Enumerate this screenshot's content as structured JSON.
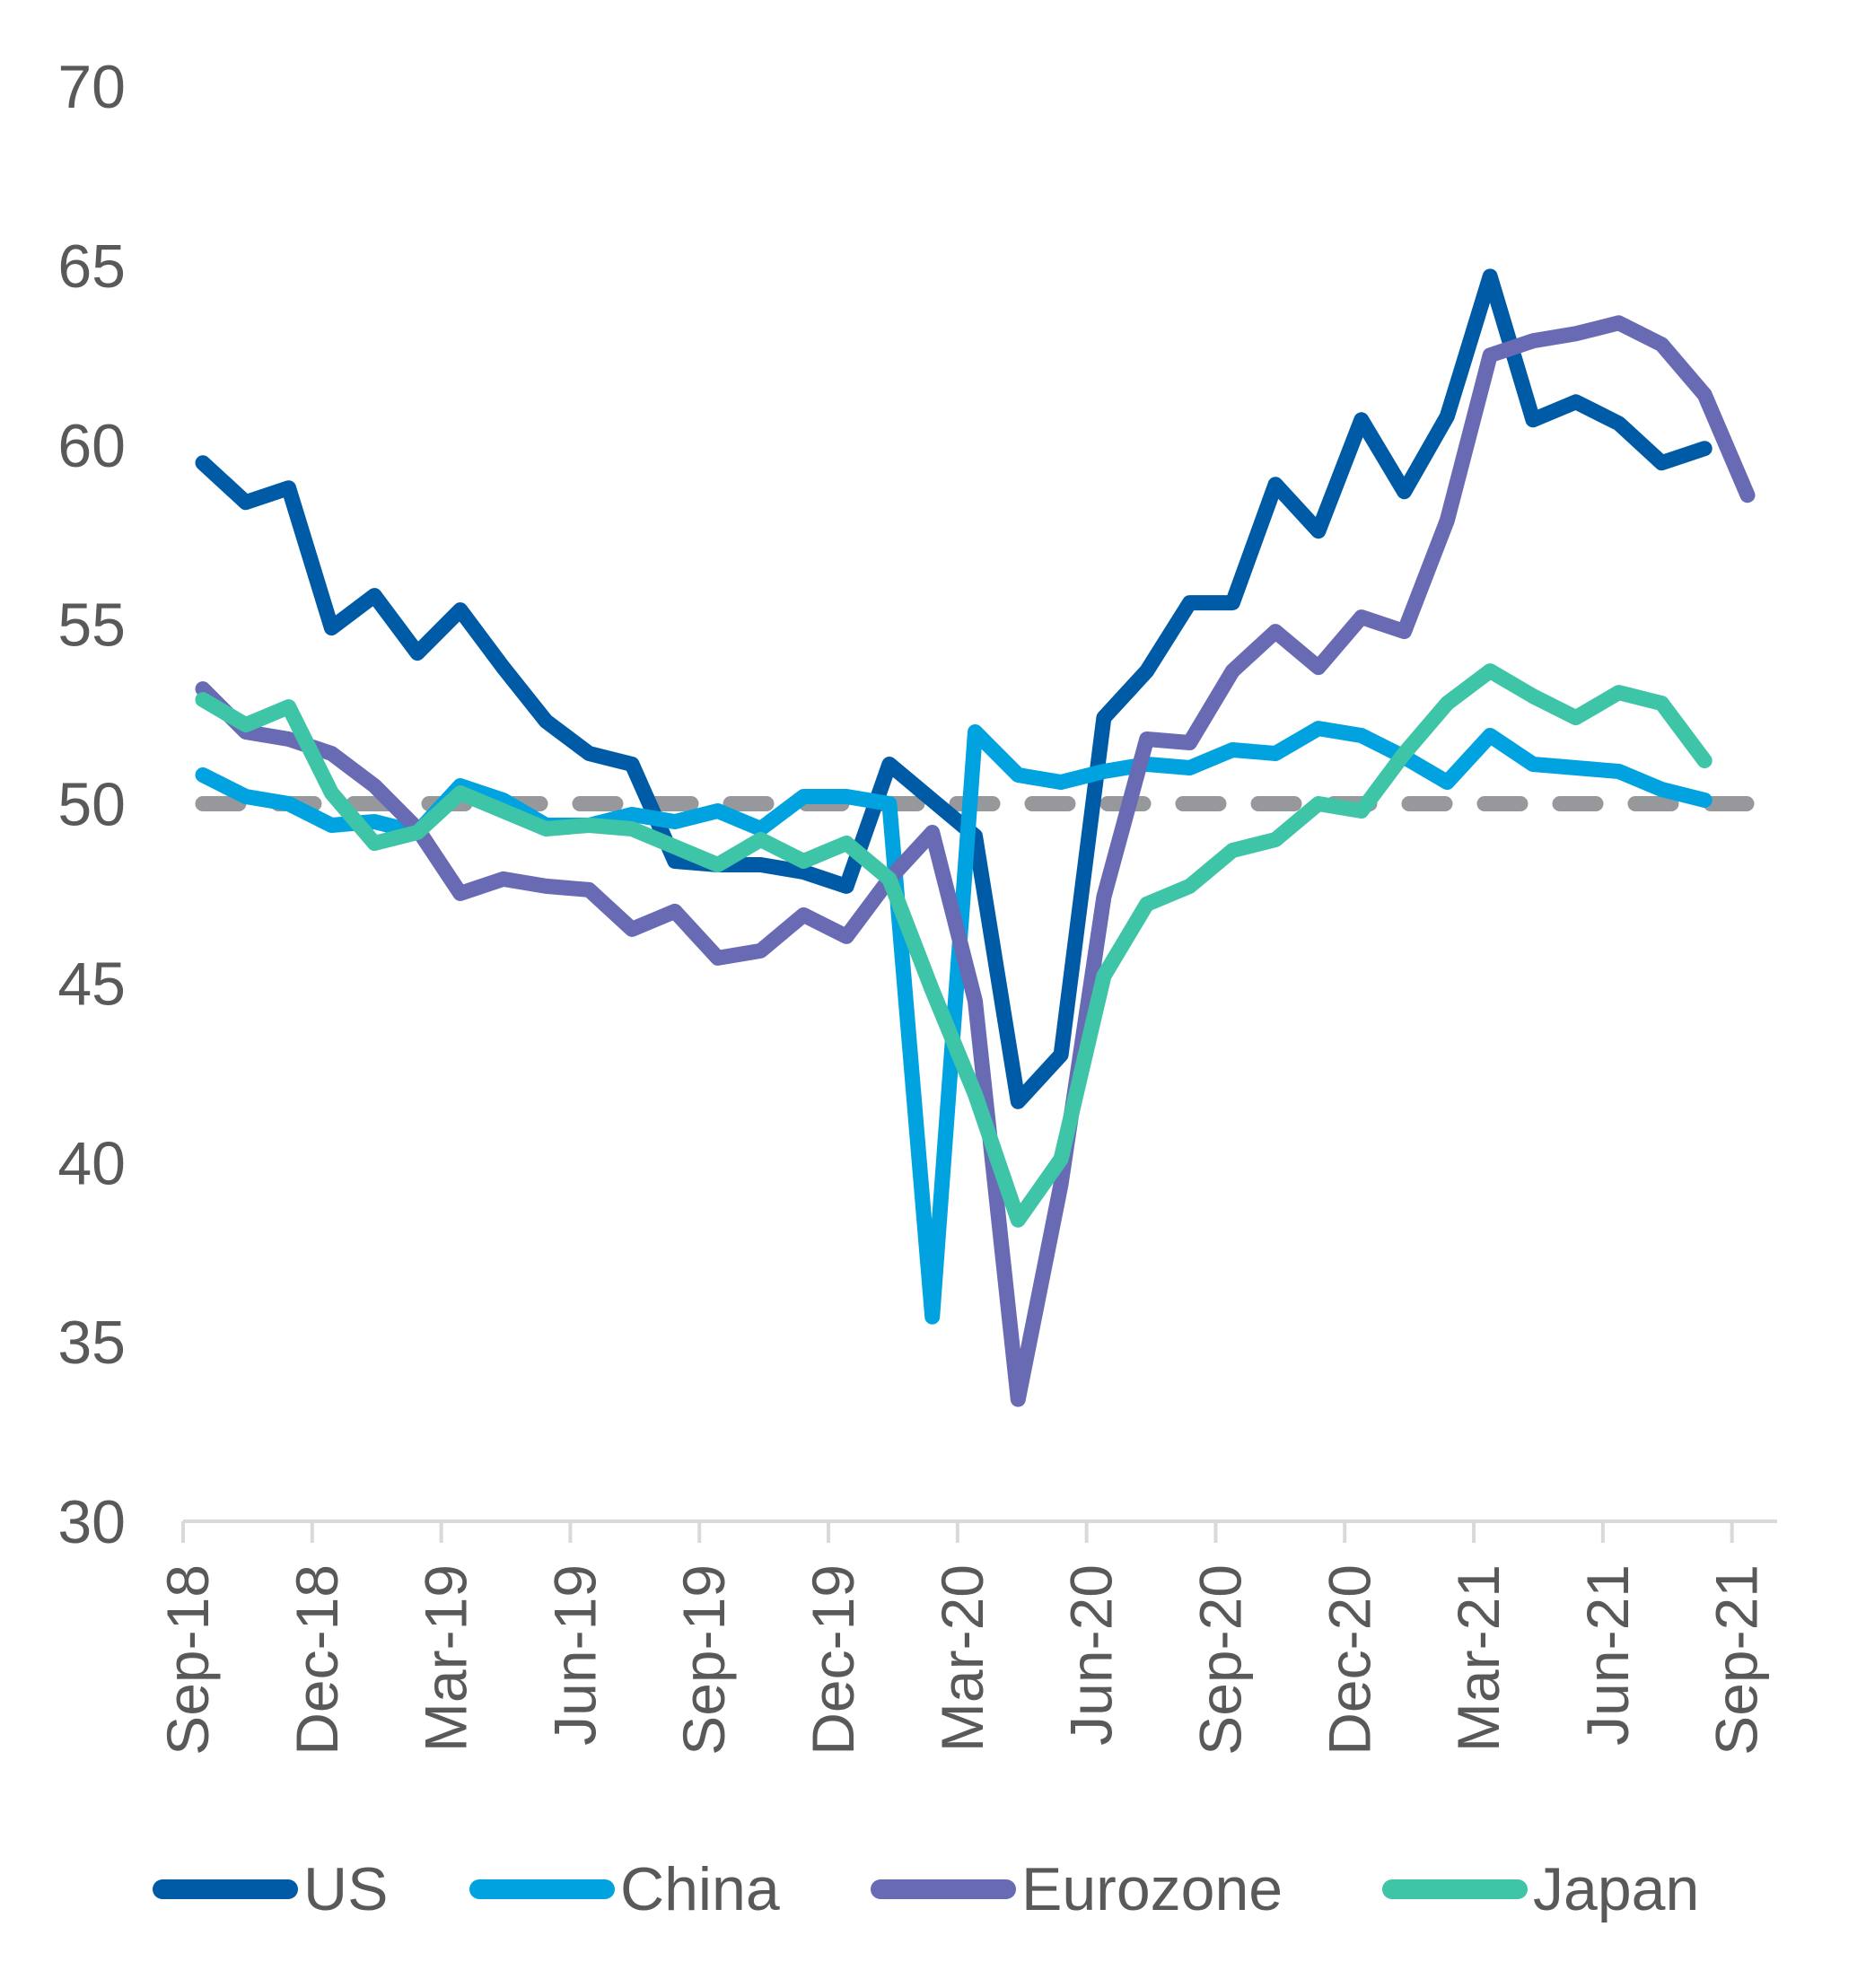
{
  "chart_data": {
    "type": "line",
    "title": "",
    "xlabel": "",
    "ylabel": "",
    "ylim": [
      30,
      70
    ],
    "yticks": [
      "30",
      "35",
      "40",
      "45",
      "50",
      "55",
      "60",
      "65",
      "70"
    ],
    "ytick_values": [
      30,
      35,
      40,
      45,
      50,
      55,
      60,
      65,
      70
    ],
    "grid": false,
    "x": [
      "Sep-18",
      "Oct-18",
      "Nov-18",
      "Dec-18",
      "Jan-19",
      "Feb-19",
      "Mar-19",
      "Apr-19",
      "May-19",
      "Jun-19",
      "Jul-19",
      "Aug-19",
      "Sep-19",
      "Oct-19",
      "Nov-19",
      "Dec-19",
      "Jan-20",
      "Feb-20",
      "Mar-20",
      "Apr-20",
      "May-20",
      "Jun-20",
      "Jul-20",
      "Aug-20",
      "Sep-20",
      "Oct-20",
      "Nov-20",
      "Dec-20",
      "Jan-21",
      "Feb-21",
      "Mar-21",
      "Apr-21",
      "May-21",
      "Jun-21",
      "Jul-21",
      "Aug-21",
      "Sep-21"
    ],
    "xtick_labels": [
      "Sep-18",
      "Dec-18",
      "Mar-19",
      "Jun-19",
      "Sep-19",
      "Dec-19",
      "Mar-20",
      "Jun-20",
      "Sep-20",
      "Dec-20",
      "Mar-21",
      "Jun-21",
      "Sep-21"
    ],
    "xtick_indices": [
      0,
      3,
      6,
      9,
      12,
      15,
      18,
      21,
      24,
      27,
      30,
      33,
      36
    ],
    "reference_line": {
      "value": 50,
      "style": "dashed",
      "color": "#97989C"
    },
    "legend_position": "bottom",
    "series": [
      {
        "name": "US",
        "color": "#005BA6",
        "values": [
          59.5,
          58.4,
          58.8,
          54.9,
          55.8,
          54.2,
          55.4,
          53.8,
          52.3,
          51.4,
          51.1,
          48.4,
          48.3,
          48.3,
          48.1,
          47.7,
          51.1,
          50.1,
          49.1,
          41.7,
          43.0,
          52.4,
          53.7,
          55.6,
          55.6,
          58.9,
          57.6,
          60.7,
          58.7,
          60.8,
          64.7,
          60.7,
          61.2,
          60.6,
          59.5,
          59.9,
          null
        ]
      },
      {
        "name": "China",
        "color": "#00A3E0",
        "values": [
          50.8,
          50.2,
          50.0,
          49.4,
          49.5,
          49.2,
          50.5,
          50.1,
          49.4,
          49.4,
          49.7,
          49.5,
          49.8,
          49.3,
          50.2,
          50.2,
          50.0,
          35.7,
          52.0,
          50.8,
          50.6,
          50.9,
          51.1,
          51.0,
          51.5,
          51.4,
          52.1,
          51.9,
          51.3,
          50.6,
          51.9,
          51.1,
          51.0,
          50.9,
          50.4,
          50.1,
          null
        ]
      },
      {
        "name": "Eurozone",
        "color": "#686BB4",
        "values": [
          53.2,
          52.0,
          51.8,
          51.4,
          50.5,
          49.3,
          47.5,
          47.9,
          47.7,
          47.6,
          46.5,
          47.0,
          45.7,
          45.9,
          46.9,
          46.3,
          47.9,
          49.2,
          44.5,
          33.4,
          39.4,
          47.4,
          51.8,
          51.7,
          53.7,
          54.8,
          53.8,
          55.2,
          54.8,
          57.9,
          62.5,
          62.9,
          63.1,
          63.4,
          62.8,
          61.4,
          58.6
        ]
      },
      {
        "name": "Japan",
        "color": "#3EC4A6",
        "values": [
          52.9,
          52.2,
          52.7,
          50.3,
          48.9,
          49.2,
          50.3,
          49.8,
          49.3,
          49.4,
          49.3,
          48.8,
          48.3,
          49.0,
          48.4,
          48.9,
          47.9,
          44.8,
          41.9,
          38.4,
          40.1,
          45.2,
          47.2,
          47.7,
          48.7,
          49.0,
          50.0,
          49.8,
          51.4,
          52.8,
          53.7,
          53.0,
          52.4,
          53.1,
          52.8,
          51.2,
          null
        ]
      }
    ]
  },
  "legend": {
    "items": [
      {
        "label": "US",
        "color": "#005BA6"
      },
      {
        "label": "China",
        "color": "#00A3E0"
      },
      {
        "label": "Eurozone",
        "color": "#686BB4"
      },
      {
        "label": "Japan",
        "color": "#3EC4A6"
      }
    ]
  },
  "colors": {
    "axis": "#D9D9D9",
    "text": "#595959",
    "reference": "#97989C"
  }
}
